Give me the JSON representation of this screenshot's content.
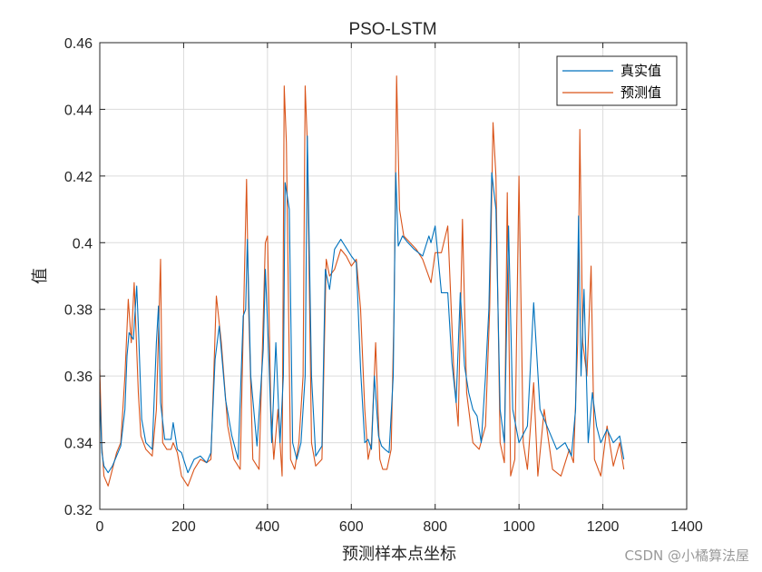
{
  "chart_data": {
    "type": "line",
    "title": "PSO-LSTM",
    "xlabel": "预测样本点坐标",
    "ylabel": "值",
    "xlim": [
      0,
      1400
    ],
    "ylim": [
      0.32,
      0.46
    ],
    "xticks": [
      0,
      200,
      400,
      600,
      800,
      1000,
      1200,
      1400
    ],
    "yticks": [
      0.32,
      0.34,
      0.36,
      0.38,
      0.4,
      0.42,
      0.44,
      0.46
    ],
    "xtick_labels": [
      "0",
      "200",
      "400",
      "600",
      "800",
      "1000",
      "1200",
      "1400"
    ],
    "ytick_labels": [
      "0.32",
      "0.34",
      "0.36",
      "0.38",
      "0.4",
      "0.42",
      "0.44",
      "0.46"
    ],
    "grid": true,
    "legend_position": "top-right",
    "series": [
      {
        "name": "真实值",
        "color": "#0072BD",
        "x": [
          0,
          5,
          10,
          20,
          30,
          40,
          50,
          60,
          65,
          70,
          80,
          88,
          92,
          100,
          110,
          125,
          135,
          140,
          145,
          155,
          170,
          175,
          185,
          195,
          210,
          225,
          240,
          255,
          265,
          275,
          285,
          300,
          315,
          330,
          342,
          348,
          352,
          360,
          375,
          390,
          395,
          402,
          410,
          420,
          430,
          438,
          442,
          452,
          460,
          470,
          480,
          490,
          495,
          505,
          515,
          530,
          538,
          548,
          560,
          575,
          585,
          600,
          612,
          622,
          632,
          640,
          648,
          655,
          665,
          672,
          680,
          690,
          700,
          706,
          712,
          722,
          735,
          750,
          770,
          785,
          790,
          800,
          815,
          830,
          840,
          850,
          860,
          870,
          880,
          890,
          900,
          910,
          920,
          928,
          935,
          945,
          955,
          965,
          975,
          985,
          1000,
          1020,
          1035,
          1050,
          1070,
          1090,
          1110,
          1125,
          1135,
          1142,
          1148,
          1155,
          1165,
          1175,
          1185,
          1195,
          1210,
          1225,
          1240,
          1250
        ],
        "y": [
          0.355,
          0.337,
          0.333,
          0.331,
          0.333,
          0.336,
          0.339,
          0.35,
          0.366,
          0.373,
          0.371,
          0.387,
          0.375,
          0.347,
          0.34,
          0.338,
          0.37,
          0.381,
          0.352,
          0.341,
          0.341,
          0.346,
          0.338,
          0.337,
          0.331,
          0.335,
          0.336,
          0.334,
          0.337,
          0.365,
          0.375,
          0.353,
          0.342,
          0.335,
          0.378,
          0.38,
          0.401,
          0.36,
          0.339,
          0.368,
          0.392,
          0.37,
          0.34,
          0.37,
          0.34,
          0.36,
          0.418,
          0.41,
          0.34,
          0.335,
          0.34,
          0.36,
          0.432,
          0.36,
          0.336,
          0.339,
          0.392,
          0.386,
          0.398,
          0.401,
          0.399,
          0.396,
          0.394,
          0.362,
          0.34,
          0.341,
          0.338,
          0.36,
          0.342,
          0.339,
          0.338,
          0.337,
          0.36,
          0.421,
          0.399,
          0.402,
          0.4,
          0.398,
          0.396,
          0.402,
          0.4,
          0.405,
          0.385,
          0.385,
          0.364,
          0.352,
          0.385,
          0.363,
          0.355,
          0.35,
          0.348,
          0.34,
          0.36,
          0.38,
          0.421,
          0.41,
          0.35,
          0.34,
          0.405,
          0.35,
          0.34,
          0.345,
          0.382,
          0.35,
          0.344,
          0.338,
          0.34,
          0.336,
          0.35,
          0.408,
          0.36,
          0.386,
          0.34,
          0.355,
          0.345,
          0.34,
          0.344,
          0.34,
          0.342,
          0.335
        ]
      },
      {
        "name": "预测值",
        "color": "#D95319",
        "x": [
          0,
          5,
          10,
          20,
          30,
          40,
          50,
          60,
          68,
          75,
          82,
          92,
          98,
          110,
          125,
          135,
          145,
          150,
          160,
          170,
          175,
          185,
          195,
          210,
          225,
          240,
          255,
          265,
          278,
          290,
          305,
          320,
          335,
          345,
          350,
          355,
          365,
          380,
          395,
          400,
          408,
          415,
          425,
          435,
          440,
          445,
          455,
          465,
          475,
          485,
          490,
          495,
          505,
          515,
          530,
          540,
          548,
          560,
          575,
          588,
          600,
          612,
          622,
          632,
          640,
          648,
          658,
          668,
          675,
          685,
          695,
          702,
          708,
          715,
          725,
          740,
          755,
          770,
          790,
          800,
          815,
          830,
          845,
          855,
          865,
          875,
          890,
          905,
          920,
          930,
          938,
          945,
          955,
          965,
          972,
          980,
          990,
          1000,
          1010,
          1020,
          1035,
          1045,
          1060,
          1080,
          1100,
          1120,
          1130,
          1140,
          1145,
          1152,
          1162,
          1172,
          1180,
          1195,
          1210,
          1225,
          1240,
          1250
        ],
        "y": [
          0.362,
          0.339,
          0.33,
          0.327,
          0.332,
          0.337,
          0.34,
          0.36,
          0.383,
          0.37,
          0.388,
          0.355,
          0.342,
          0.338,
          0.336,
          0.35,
          0.395,
          0.34,
          0.338,
          0.338,
          0.34,
          0.337,
          0.33,
          0.327,
          0.332,
          0.335,
          0.334,
          0.335,
          0.384,
          0.37,
          0.345,
          0.335,
          0.332,
          0.39,
          0.419,
          0.38,
          0.335,
          0.332,
          0.4,
          0.402,
          0.35,
          0.335,
          0.35,
          0.33,
          0.447,
          0.43,
          0.335,
          0.332,
          0.34,
          0.36,
          0.447,
          0.43,
          0.34,
          0.333,
          0.335,
          0.395,
          0.39,
          0.392,
          0.398,
          0.396,
          0.393,
          0.395,
          0.38,
          0.35,
          0.335,
          0.34,
          0.37,
          0.335,
          0.332,
          0.332,
          0.338,
          0.38,
          0.45,
          0.41,
          0.402,
          0.4,
          0.398,
          0.395,
          0.388,
          0.397,
          0.397,
          0.405,
          0.36,
          0.345,
          0.407,
          0.355,
          0.34,
          0.338,
          0.345,
          0.38,
          0.436,
          0.42,
          0.34,
          0.334,
          0.415,
          0.33,
          0.335,
          0.42,
          0.34,
          0.332,
          0.358,
          0.33,
          0.35,
          0.332,
          0.33,
          0.338,
          0.334,
          0.37,
          0.434,
          0.37,
          0.36,
          0.393,
          0.335,
          0.33,
          0.345,
          0.333,
          0.34,
          0.332
        ]
      }
    ]
  },
  "watermark": "CSDN @小橘算法屋"
}
